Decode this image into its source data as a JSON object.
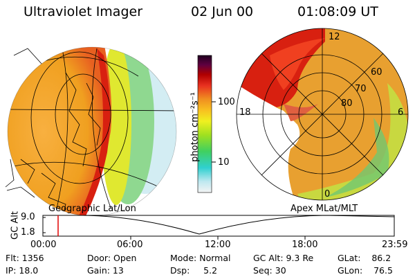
{
  "header": {
    "title": "Ultraviolet Imager",
    "date": "02 Jun 00",
    "time": "01:08:09 UT"
  },
  "colorbar": {
    "label": "photon cm⁻²s⁻¹",
    "ticks": [
      "100",
      "10"
    ],
    "scale": "log"
  },
  "polar_grid": {
    "lat_labels": [
      "80",
      "70",
      "60"
    ],
    "mlt_labels": [
      "12",
      "6",
      "18",
      "0"
    ]
  },
  "panel_labels": {
    "left": "Geographic Lat/Lon",
    "right": "Apex MLat/MLT"
  },
  "timeline": {
    "axis_label": "GC Alt",
    "y_ticks": [
      "9.0",
      "1.8"
    ],
    "x_ticks": [
      "00:00",
      "06:00",
      "12:00",
      "18:00",
      "23:59"
    ],
    "marker_hours": 1.14,
    "marker_color": "#e00000"
  },
  "status": {
    "flt": "Flt: 1356",
    "ip": "IP: 18.0",
    "door": "Door: Open",
    "gain": "Gain: 13",
    "mode": "Mode: Normal",
    "dsp": "Dsp:     5.2",
    "gcalt": "GC Alt: 9.3 Re",
    "seq": "Seq: 30",
    "glat": "GLat:    86.2",
    "glon": "GLon:    76.5"
  }
}
